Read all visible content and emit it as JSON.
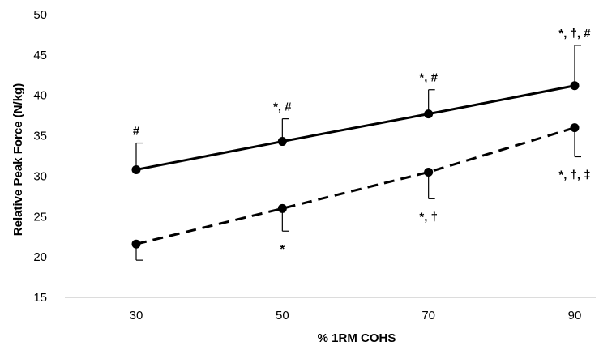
{
  "chart_data": {
    "type": "line",
    "x": [
      30,
      50,
      70,
      90
    ],
    "xlabel": "% 1RM COHS",
    "ylabel": "Relative Peak Force (N/kg)",
    "ylim": [
      15,
      50
    ],
    "yticks": [
      15,
      20,
      25,
      30,
      35,
      40,
      45,
      50
    ],
    "xticks": [
      30,
      50,
      70,
      90
    ],
    "grid": false,
    "series": [
      {
        "style": "solid",
        "color": "#000000",
        "values": [
          30.8,
          34.3,
          37.7,
          41.2
        ],
        "error_upper": [
          3.3,
          2.8,
          3.0,
          5.0
        ],
        "annotations": [
          "#",
          "*, #",
          "*, #",
          "*, †, #"
        ]
      },
      {
        "style": "dashed",
        "color": "#000000",
        "values": [
          21.6,
          26.0,
          30.5,
          36.0
        ],
        "error_lower": [
          2.0,
          2.8,
          3.3,
          3.6
        ],
        "annotations": [
          "",
          "*",
          "*, †",
          "*, †, ‡"
        ]
      }
    ]
  }
}
